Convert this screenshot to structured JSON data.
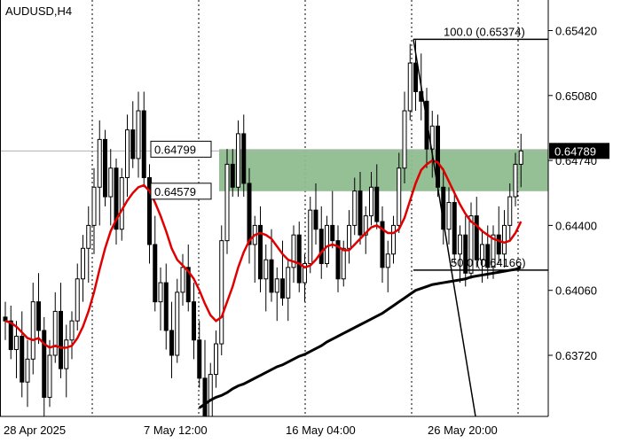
{
  "chart_data": {
    "type": "candlestick",
    "symbol": "AUDUSD,H4",
    "price_axis": {
      "ticks": [
        "0.65420",
        "0.65080",
        "0.64740",
        "0.64400",
        "0.64060",
        "0.63720"
      ],
      "range": [
        0.634,
        0.6558
      ],
      "current_price_label": "0.64789"
    },
    "time_axis": {
      "labels": [
        "28 Apr 2025",
        "7 May 12:00",
        "16 May 04:00",
        "26 May 20:00"
      ]
    },
    "zone": {
      "upper_label": "0.64799",
      "lower_label": "0.64579",
      "upper": 0.64799,
      "lower": 0.64579,
      "color": "#8fbc8f"
    },
    "fibonacci": {
      "level_100_label": "100.0 (0.65374)",
      "level_50_label": "50.0 (0.64166)",
      "level_100": 0.65374,
      "level_50": 0.64166
    },
    "candles": [
      [
        0.6392,
        0.64,
        0.638,
        0.639
      ],
      [
        0.639,
        0.6398,
        0.637,
        0.6375
      ],
      [
        0.6375,
        0.639,
        0.636,
        0.6382
      ],
      [
        0.6382,
        0.6395,
        0.635,
        0.6358
      ],
      [
        0.6358,
        0.638,
        0.6345,
        0.637
      ],
      [
        0.637,
        0.641,
        0.6362,
        0.64
      ],
      [
        0.64,
        0.6415,
        0.6378,
        0.6385
      ],
      [
        0.6385,
        0.6392,
        0.634,
        0.635
      ],
      [
        0.635,
        0.638,
        0.6345,
        0.6372
      ],
      [
        0.6372,
        0.6405,
        0.6368,
        0.6395
      ],
      [
        0.6395,
        0.641,
        0.636,
        0.6365
      ],
      [
        0.6365,
        0.6388,
        0.635,
        0.638
      ],
      [
        0.638,
        0.6395,
        0.637,
        0.639
      ],
      [
        0.639,
        0.642,
        0.6385,
        0.6412
      ],
      [
        0.6412,
        0.6435,
        0.64,
        0.6428
      ],
      [
        0.6428,
        0.645,
        0.641,
        0.644
      ],
      [
        0.644,
        0.647,
        0.6425,
        0.646
      ],
      [
        0.646,
        0.6495,
        0.644,
        0.6485
      ],
      [
        0.6485,
        0.649,
        0.645,
        0.6455
      ],
      [
        0.6455,
        0.648,
        0.644,
        0.647
      ],
      [
        0.647,
        0.6475,
        0.643,
        0.6438
      ],
      [
        0.6438,
        0.647,
        0.6432,
        0.6465
      ],
      [
        0.6465,
        0.6498,
        0.6455,
        0.649
      ],
      [
        0.649,
        0.6505,
        0.647,
        0.6475
      ],
      [
        0.6475,
        0.651,
        0.6465,
        0.65
      ],
      [
        0.65,
        0.651,
        0.646,
        0.6465
      ],
      [
        0.6465,
        0.6472,
        0.642,
        0.643
      ],
      [
        0.643,
        0.6445,
        0.6395,
        0.64
      ],
      [
        0.64,
        0.6418,
        0.6385,
        0.641
      ],
      [
        0.641,
        0.642,
        0.6375,
        0.6385
      ],
      [
        0.6385,
        0.64,
        0.636,
        0.6372
      ],
      [
        0.6372,
        0.6412,
        0.6368,
        0.6405
      ],
      [
        0.6405,
        0.6425,
        0.6398,
        0.6418
      ],
      [
        0.6418,
        0.643,
        0.6395,
        0.64
      ],
      [
        0.64,
        0.641,
        0.637,
        0.638
      ],
      [
        0.638,
        0.639,
        0.6355,
        0.636
      ],
      [
        0.636,
        0.638,
        0.633,
        0.634
      ],
      [
        0.634,
        0.6368,
        0.6335,
        0.6362
      ],
      [
        0.6362,
        0.6385,
        0.6355,
        0.6378
      ],
      [
        0.6378,
        0.644,
        0.6372,
        0.6432
      ],
      [
        0.6432,
        0.648,
        0.6425,
        0.6472
      ],
      [
        0.6472,
        0.648,
        0.6455,
        0.646
      ],
      [
        0.646,
        0.6495,
        0.6455,
        0.6488
      ],
      [
        0.6488,
        0.6498,
        0.6455,
        0.6462
      ],
      [
        0.6462,
        0.647,
        0.642,
        0.643
      ],
      [
        0.643,
        0.6445,
        0.641,
        0.644
      ],
      [
        0.644,
        0.645,
        0.6405,
        0.6412
      ],
      [
        0.6412,
        0.643,
        0.6395,
        0.6422
      ],
      [
        0.6422,
        0.6438,
        0.64,
        0.6405
      ],
      [
        0.6405,
        0.6418,
        0.639,
        0.6412
      ],
      [
        0.6412,
        0.6432,
        0.6398,
        0.6402
      ],
      [
        0.6402,
        0.6422,
        0.639,
        0.6418
      ],
      [
        0.6418,
        0.644,
        0.641,
        0.6435
      ],
      [
        0.6435,
        0.6442,
        0.6405,
        0.641
      ],
      [
        0.641,
        0.6425,
        0.64,
        0.642
      ],
      [
        0.642,
        0.6455,
        0.6415,
        0.6448
      ],
      [
        0.6448,
        0.6462,
        0.643,
        0.6438
      ],
      [
        0.6438,
        0.645,
        0.6412,
        0.642
      ],
      [
        0.642,
        0.6445,
        0.6418,
        0.644
      ],
      [
        0.644,
        0.6458,
        0.6428,
        0.6432
      ],
      [
        0.6432,
        0.644,
        0.6405,
        0.6412
      ],
      [
        0.6412,
        0.6432,
        0.6408,
        0.6428
      ],
      [
        0.6428,
        0.6448,
        0.642,
        0.644
      ],
      [
        0.644,
        0.6465,
        0.6435,
        0.6458
      ],
      [
        0.6458,
        0.6468,
        0.643,
        0.6435
      ],
      [
        0.6435,
        0.645,
        0.6425,
        0.6445
      ],
      [
        0.6445,
        0.6468,
        0.644,
        0.646
      ],
      [
        0.646,
        0.6472,
        0.6438,
        0.6442
      ],
      [
        0.6442,
        0.645,
        0.641,
        0.6418
      ],
      [
        0.6418,
        0.6432,
        0.6405,
        0.6425
      ],
      [
        0.6425,
        0.6445,
        0.642,
        0.644
      ],
      [
        0.644,
        0.6478,
        0.6436,
        0.647
      ],
      [
        0.647,
        0.651,
        0.6462,
        0.65
      ],
      [
        0.65,
        0.6535,
        0.6495,
        0.6525
      ],
      [
        0.6525,
        0.6537,
        0.65,
        0.651
      ],
      [
        0.651,
        0.653,
        0.6495,
        0.6505
      ],
      [
        0.6505,
        0.6512,
        0.647,
        0.648
      ],
      [
        0.648,
        0.65,
        0.6465,
        0.6492
      ],
      [
        0.6492,
        0.6498,
        0.6455,
        0.646
      ],
      [
        0.646,
        0.647,
        0.643,
        0.6438
      ],
      [
        0.6438,
        0.646,
        0.643,
        0.6452
      ],
      [
        0.6452,
        0.6458,
        0.642,
        0.6425
      ],
      [
        0.6425,
        0.644,
        0.641,
        0.6435
      ],
      [
        0.6435,
        0.6445,
        0.6408,
        0.6415
      ],
      [
        0.6415,
        0.6452,
        0.6412,
        0.6445
      ],
      [
        0.6445,
        0.6455,
        0.6418,
        0.6422
      ],
      [
        0.6422,
        0.6438,
        0.641,
        0.643
      ],
      [
        0.643,
        0.644,
        0.6412,
        0.6418
      ],
      [
        0.6418,
        0.644,
        0.6412,
        0.6435
      ],
      [
        0.6435,
        0.645,
        0.642,
        0.6425
      ],
      [
        0.6425,
        0.6448,
        0.6418,
        0.644
      ],
      [
        0.644,
        0.6462,
        0.6432,
        0.6455
      ],
      [
        0.6455,
        0.6478,
        0.645,
        0.6472
      ],
      [
        0.6472,
        0.6488,
        0.646,
        0.6479
      ]
    ],
    "ma_fast": [
      0.639,
      0.6389,
      0.6387,
      0.6384,
      0.6381,
      0.638,
      0.6381,
      0.6378,
      0.6376,
      0.6377,
      0.6376,
      0.6376,
      0.6377,
      0.6381,
      0.6387,
      0.6395,
      0.6405,
      0.6417,
      0.6428,
      0.6437,
      0.6443,
      0.6448,
      0.6453,
      0.6457,
      0.646,
      0.6461,
      0.6458,
      0.6452,
      0.6445,
      0.6437,
      0.6428,
      0.6422,
      0.6419,
      0.6416,
      0.6412,
      0.6406,
      0.6399,
      0.6393,
      0.639,
      0.6392,
      0.64,
      0.6408,
      0.6418,
      0.6426,
      0.6432,
      0.6435,
      0.6436,
      0.6435,
      0.6433,
      0.6429,
      0.6425,
      0.6422,
      0.6421,
      0.642,
      0.6418,
      0.6419,
      0.6422,
      0.6426,
      0.6429,
      0.643,
      0.6429,
      0.6427,
      0.6427,
      0.643,
      0.6433,
      0.6436,
      0.6439,
      0.644,
      0.6438,
      0.6436,
      0.6436,
      0.6438,
      0.6444,
      0.6453,
      0.6462,
      0.6469,
      0.6472,
      0.6474,
      0.6473,
      0.6469,
      0.6463,
      0.6457,
      0.6451,
      0.6446,
      0.6442,
      0.644,
      0.6437,
      0.6435,
      0.6433,
      0.6432,
      0.6431,
      0.6432,
      0.6436,
      0.6442
    ],
    "ma_slow": {
      "start_index": 35,
      "values": [
        0.63445,
        0.63465,
        0.63485,
        0.635,
        0.6351,
        0.63525,
        0.63545,
        0.6356,
        0.6357,
        0.63585,
        0.636,
        0.63615,
        0.6363,
        0.63645,
        0.6366,
        0.6367,
        0.63685,
        0.637,
        0.63715,
        0.63725,
        0.6374,
        0.63755,
        0.6377,
        0.6379,
        0.63805,
        0.6382,
        0.63835,
        0.6385,
        0.63865,
        0.6388,
        0.63895,
        0.6391,
        0.63925,
        0.6394,
        0.6396,
        0.6398,
        0.64,
        0.6402,
        0.6404,
        0.6406,
        0.6407,
        0.6408,
        0.6409,
        0.64095,
        0.641,
        0.64105,
        0.6411,
        0.64115,
        0.6412,
        0.6413,
        0.64135,
        0.6414,
        0.64145,
        0.6415,
        0.64155,
        0.6416,
        0.64165,
        0.6417,
        0.6418
      ]
    }
  }
}
